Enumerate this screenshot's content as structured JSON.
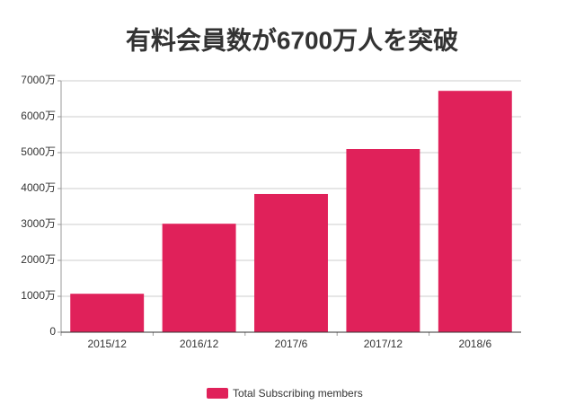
{
  "chart_data": {
    "type": "bar",
    "title": "有料会員数が6700万人を突破",
    "categories": [
      "2015/12",
      "2016/12",
      "2017/6",
      "2017/12",
      "2018/6"
    ],
    "series": [
      {
        "name": "Total Subscribing members",
        "color": "#e0215a",
        "values": [
          1070,
          3020,
          3850,
          5100,
          6720
        ]
      }
    ],
    "ylim": [
      0,
      7000
    ],
    "yticks": [
      0,
      {
        "value": 1000,
        "label": "1000万"
      },
      {
        "value": 2000,
        "label": "2000万"
      },
      {
        "value": 3000,
        "label": "3000万"
      },
      {
        "value": 4000,
        "label": "4000万"
      },
      {
        "value": 5000,
        "label": "5000万"
      },
      {
        "value": 6000,
        "label": "6000万"
      },
      {
        "value": 7000,
        "label": "7000万"
      }
    ],
    "grid": true,
    "legend": "bottom"
  }
}
